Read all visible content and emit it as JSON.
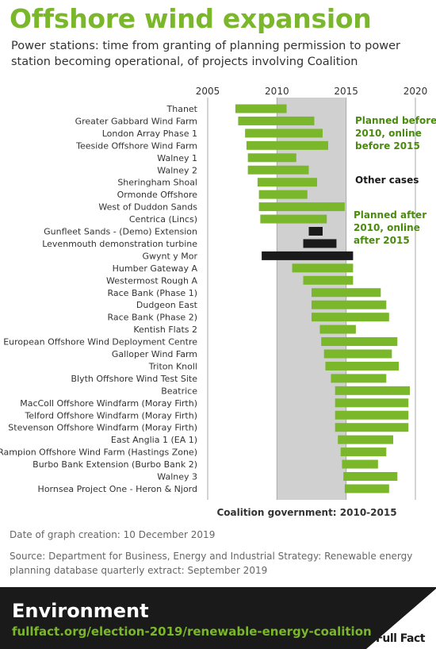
{
  "title": "Offshore wind expansion",
  "subtitle": "Power stations: time from granting of planning permission to power station becoming operational, of projects involving Coalition",
  "colors": {
    "green": "#7ab72b",
    "dark_green": "#4a8a0f",
    "black": "#1a1a1a",
    "shade": "#d0d0d0",
    "grid": "#aaaaaa",
    "text": "#333333"
  },
  "chart_data": {
    "type": "bar",
    "orientation": "horizontal-range",
    "xlim": [
      2005,
      2020
    ],
    "xticks": [
      "2005",
      "2010",
      "2015",
      "2020"
    ],
    "shaded_period": {
      "start": 2010,
      "end": 2015,
      "label": "Coalition government: 2010-2015"
    },
    "legend": [
      {
        "label": "Planned before 2010, online before 2015",
        "lines": [
          "Planned before",
          "2010, online",
          "before 2015"
        ],
        "color": "#4a8a0f"
      },
      {
        "label": "Other cases",
        "lines": [
          "Other cases"
        ],
        "color": "#1a1a1a"
      },
      {
        "label": "Planned after 2010, online after 2015",
        "lines": [
          "Planned after",
          "2010, online",
          "after 2015"
        ],
        "color": "#4a8a0f"
      }
    ],
    "projects": [
      {
        "name": "Thanet",
        "start": 2007.0,
        "end": 2010.7,
        "group": "green"
      },
      {
        "name": "Greater Gabbard Wind Farm",
        "start": 2007.2,
        "end": 2012.7,
        "group": "green"
      },
      {
        "name": "London Array Phase 1",
        "start": 2007.7,
        "end": 2013.3,
        "group": "green"
      },
      {
        "name": "Teeside Offshore Wind Farm",
        "start": 2007.8,
        "end": 2013.7,
        "group": "green"
      },
      {
        "name": "Walney 1",
        "start": 2007.9,
        "end": 2011.4,
        "group": "green"
      },
      {
        "name": "Walney 2",
        "start": 2007.9,
        "end": 2012.3,
        "group": "green"
      },
      {
        "name": "Sheringham Shoal",
        "start": 2008.6,
        "end": 2012.9,
        "group": "green"
      },
      {
        "name": "Ormonde Offshore",
        "start": 2008.7,
        "end": 2012.2,
        "group": "green"
      },
      {
        "name": "West of Duddon Sands",
        "start": 2008.7,
        "end": 2014.9,
        "group": "green"
      },
      {
        "name": "Centrica (Lincs)",
        "start": 2008.8,
        "end": 2013.6,
        "group": "green"
      },
      {
        "name": "Gunfleet Sands - (Demo) Extension",
        "start": 2012.3,
        "end": 2013.3,
        "group": "black"
      },
      {
        "name": "Levenmouth demonstration turbine",
        "start": 2011.9,
        "end": 2014.3,
        "group": "black"
      },
      {
        "name": "Gwynt y Mor",
        "start": 2008.9,
        "end": 2015.5,
        "group": "black"
      },
      {
        "name": "Humber Gateway A",
        "start": 2011.1,
        "end": 2015.5,
        "group": "green"
      },
      {
        "name": "Westermost Rough A",
        "start": 2011.9,
        "end": 2015.5,
        "group": "green"
      },
      {
        "name": "Race Bank (Phase 1)",
        "start": 2012.5,
        "end": 2017.5,
        "group": "green"
      },
      {
        "name": "Dudgeon East",
        "start": 2012.5,
        "end": 2017.9,
        "group": "green"
      },
      {
        "name": "Race Bank (Phase 2)",
        "start": 2012.5,
        "end": 2018.1,
        "group": "green"
      },
      {
        "name": "Kentish Flats 2",
        "start": 2013.1,
        "end": 2015.7,
        "group": "green"
      },
      {
        "name": "European Offshore Wind Deployment Centre",
        "start": 2013.2,
        "end": 2018.7,
        "group": "green"
      },
      {
        "name": "Galloper Wind Farm",
        "start": 2013.4,
        "end": 2018.3,
        "group": "green"
      },
      {
        "name": "Triton Knoll",
        "start": 2013.5,
        "end": 2018.8,
        "group": "green"
      },
      {
        "name": "Blyth Offshore Wind Test Site",
        "start": 2013.9,
        "end": 2017.9,
        "group": "green"
      },
      {
        "name": "Beatrice",
        "start": 2014.2,
        "end": 2019.6,
        "group": "green"
      },
      {
        "name": "MacColl Offshore Windfarm (Moray Firth)",
        "start": 2014.2,
        "end": 2019.5,
        "group": "green"
      },
      {
        "name": "Telford Offshore Windfarm (Moray Firth)",
        "start": 2014.2,
        "end": 2019.5,
        "group": "green"
      },
      {
        "name": "Stevenson Offshore Windfarm (Moray Firth)",
        "start": 2014.2,
        "end": 2019.5,
        "group": "green"
      },
      {
        "name": "East Anglia 1 (EA 1)",
        "start": 2014.4,
        "end": 2018.4,
        "group": "green"
      },
      {
        "name": "Rampion Offshore Wind Farm (Hastings Zone)",
        "start": 2014.6,
        "end": 2017.9,
        "group": "green"
      },
      {
        "name": "Burbo Bank Extension (Burbo Bank 2)",
        "start": 2014.7,
        "end": 2017.3,
        "group": "green"
      },
      {
        "name": "Walney 3",
        "start": 2014.8,
        "end": 2018.7,
        "group": "green"
      },
      {
        "name": "Hornsea Project One - Heron & Njord",
        "start": 2014.9,
        "end": 2018.1,
        "group": "green"
      }
    ]
  },
  "notes": {
    "date_created": "Date of graph creation: 10 December 2019",
    "source": "Source: Department for Business, Energy and Industrial Strategy: Renewable energy planning database quarterly extract: September 2019"
  },
  "footer": {
    "section": "Environment",
    "url": "fullfact.org/election-2019/renewable-energy-coalition",
    "logo_text": "Full Fact"
  }
}
